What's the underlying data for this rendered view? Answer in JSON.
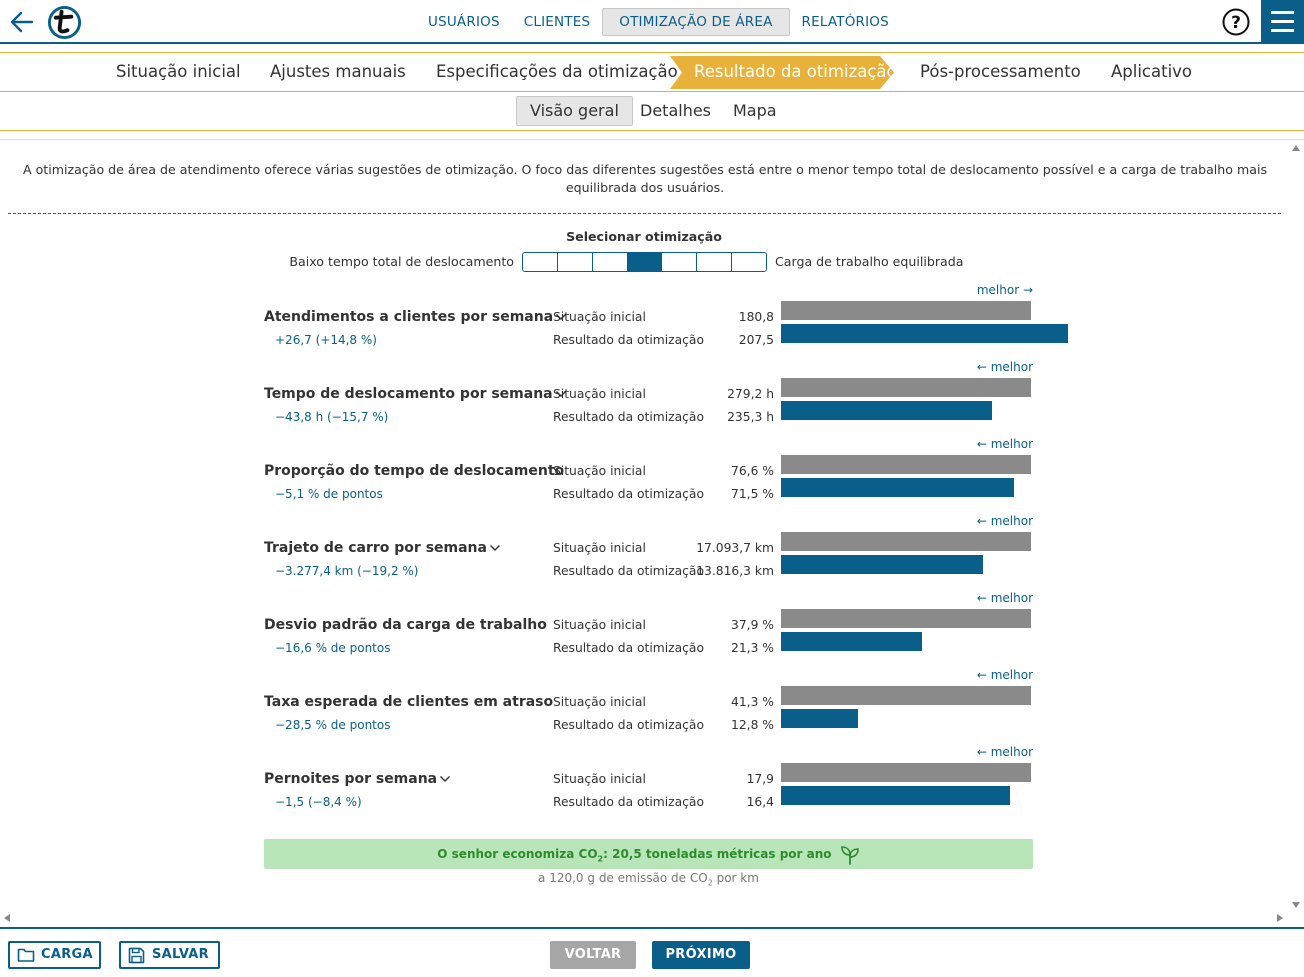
{
  "topnav": {
    "items": [
      {
        "label": "USUÁRIOS"
      },
      {
        "label": "CLIENTES"
      },
      {
        "label": "OTIMIZAÇÃO DE ÁREA",
        "active": true
      },
      {
        "label": "RELATÓRIOS"
      }
    ]
  },
  "steps": [
    {
      "label": "Situação inicial"
    },
    {
      "label": "Ajustes manuais"
    },
    {
      "label": "Especificações da otimização"
    },
    {
      "label": "Resultado da otimização",
      "active": true
    },
    {
      "label": "Pós-processamento"
    },
    {
      "label": "Aplicativo"
    }
  ],
  "subtabs": [
    {
      "label": "Visão geral",
      "active": true
    },
    {
      "label": "Detalhes"
    },
    {
      "label": "Mapa"
    }
  ],
  "intro_text": "A otimização de área de atendimento oferece várias sugestões de otimização. O foco das diferentes sugestões está entre o menor tempo total de deslocamento possível e a carga de trabalho mais equilibrada dos usuários.",
  "selector": {
    "title": "Selecionar otimização",
    "left_label": "Baixo tempo total de deslocamento",
    "right_label": "Carga de trabalho equilibrada",
    "segments": 7,
    "selected_index": 3
  },
  "row_labels": {
    "initial": "Situação inicial",
    "optimized": "Resultado da otimização"
  },
  "metrics": [
    {
      "title": "Atendimentos a clientes por semana",
      "expandable": true,
      "delta": "+26,7 (+14,8 %)",
      "better": "melhor →",
      "initial": "180,8",
      "optimized": "207,5",
      "initial_num": 180.8,
      "optimized_num": 207.5
    },
    {
      "title": "Tempo de deslocamento por semana",
      "expandable": true,
      "delta": "−43,8 h (−15,7 %)",
      "better": "← melhor",
      "initial": "279,2 h",
      "optimized": "235,3 h",
      "initial_num": 279.2,
      "optimized_num": 235.3
    },
    {
      "title": "Proporção do tempo de deslocamento",
      "expandable": false,
      "delta": "−5,1 % de pontos",
      "better": "← melhor",
      "initial": "76,6 %",
      "optimized": "71,5 %",
      "initial_num": 76.6,
      "optimized_num": 71.5
    },
    {
      "title": "Trajeto de carro por semana",
      "expandable": true,
      "delta": "−3.277,4 km (−19,2 %)",
      "better": "← melhor",
      "initial": "17.093,7 km",
      "optimized": "13.816,3 km",
      "initial_num": 17093.7,
      "optimized_num": 13816.3
    },
    {
      "title": "Desvio padrão da carga de trabalho",
      "expandable": false,
      "delta": "−16,6 % de pontos",
      "better": "← melhor",
      "initial": "37,9 %",
      "optimized": "21,3 %",
      "initial_num": 37.9,
      "optimized_num": 21.3
    },
    {
      "title": "Taxa esperada de clientes em atraso",
      "expandable": false,
      "delta": "−28,5 % de pontos",
      "better": "← melhor",
      "initial": "41,3 %",
      "optimized": "12,8 %",
      "initial_num": 41.3,
      "optimized_num": 12.8
    },
    {
      "title": "Pernoites por semana",
      "expandable": true,
      "delta": "−1,5 (−8,4 %)",
      "better": "← melhor",
      "initial": "17,9",
      "optimized": "16,4",
      "initial_num": 17.9,
      "optimized_num": 16.4
    }
  ],
  "co2": {
    "text_before": "O senhor economiza CO",
    "sub": "2",
    "text_after": ": 20,5 toneladas métricas por ano",
    "note_before": "a 120,0 g de emissão de CO",
    "note_sub": "2",
    "note_after": " por km"
  },
  "footer": {
    "load_label": "CARGA",
    "save_label": "SALVAR",
    "back_label": "VOLTAR",
    "next_label": "PRÓXIMO"
  },
  "colors": {
    "brand": "#0a5f8a",
    "accent": "#e8b23a",
    "initial_bar": "#8a8a8a",
    "co2_bg": "#b8e6b8",
    "co2_text": "#2e8b2e",
    "disabled_button": "#a6a6a6"
  }
}
